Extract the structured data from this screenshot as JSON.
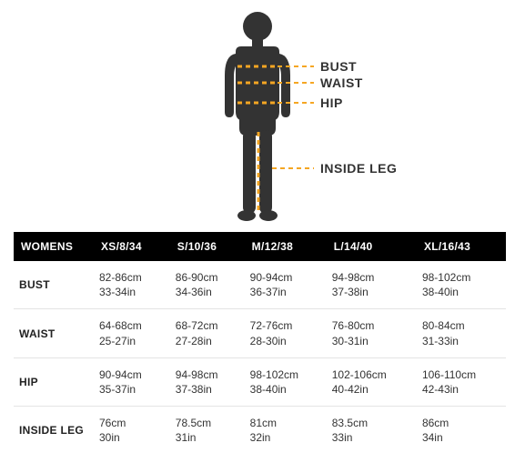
{
  "diagram": {
    "labels": {
      "bust": "BUST",
      "waist": "WAIST",
      "hip": "HIP",
      "inside_leg": "INSIDE LEG"
    },
    "colors": {
      "body": "#333333",
      "dash": "#f5a623",
      "label_text": "#333333"
    }
  },
  "table": {
    "header_bg": "#000000",
    "header_fg": "#ffffff",
    "row_border": "#e4e4e4",
    "corner": "WOMENS",
    "sizes": [
      "XS/8/34",
      "S/10/36",
      "M/12/38",
      "L/14/40",
      "XL/16/43"
    ],
    "rows": [
      {
        "label": "BUST",
        "cells": [
          {
            "cm": "82-86cm",
            "in": "33-34in"
          },
          {
            "cm": "86-90cm",
            "in": "34-36in"
          },
          {
            "cm": "90-94cm",
            "in": "36-37in"
          },
          {
            "cm": "94-98cm",
            "in": "37-38in"
          },
          {
            "cm": "98-102cm",
            "in": "38-40in"
          }
        ]
      },
      {
        "label": "WAIST",
        "cells": [
          {
            "cm": "64-68cm",
            "in": "25-27in"
          },
          {
            "cm": "68-72cm",
            "in": "27-28in"
          },
          {
            "cm": "72-76cm",
            "in": "28-30in"
          },
          {
            "cm": "76-80cm",
            "in": "30-31in"
          },
          {
            "cm": "80-84cm",
            "in": "31-33in"
          }
        ]
      },
      {
        "label": "HIP",
        "cells": [
          {
            "cm": "90-94cm",
            "in": "35-37in"
          },
          {
            "cm": "94-98cm",
            "in": "37-38in"
          },
          {
            "cm": "98-102cm",
            "in": "38-40in"
          },
          {
            "cm": "102-106cm",
            "in": "40-42in"
          },
          {
            "cm": "106-110cm",
            "in": "42-43in"
          }
        ]
      },
      {
        "label": "INSIDE LEG",
        "cells": [
          {
            "cm": "76cm",
            "in": "30in"
          },
          {
            "cm": "78.5cm",
            "in": "31in"
          },
          {
            "cm": "81cm",
            "in": "32in"
          },
          {
            "cm": "83.5cm",
            "in": "33in"
          },
          {
            "cm": "86cm",
            "in": "34in"
          }
        ]
      }
    ]
  }
}
